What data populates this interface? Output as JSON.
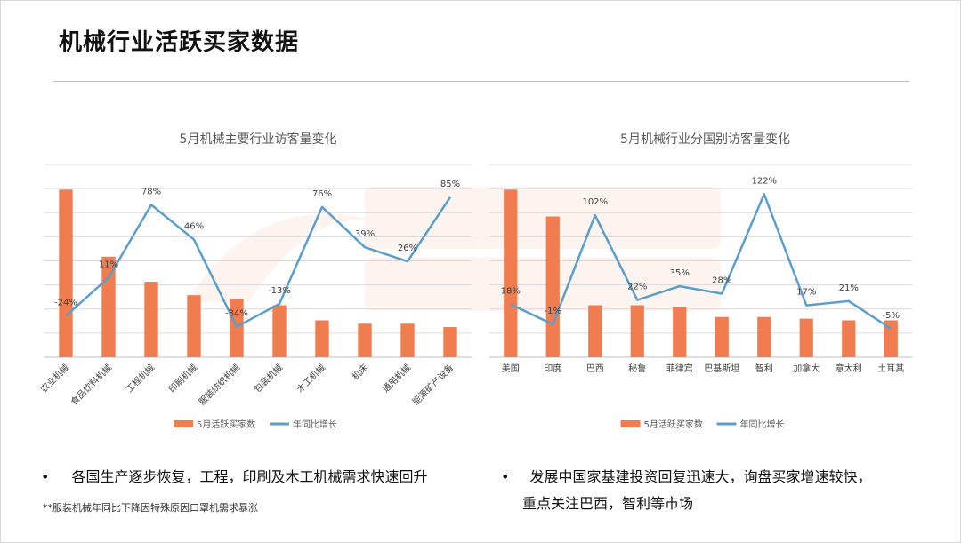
{
  "slide": {
    "title": "机械行业活跃买家数据",
    "bullet_left": "各国生产逐步恢复，工程，印刷及木工机械需求快速回升",
    "note_left": "**服装机械年同比下降因特殊原因口罩机需求暴涨",
    "bullet_right_line1": "发展中国家基建投资回复迅速大，询盘买家增速较快，",
    "bullet_right_line2": "重点关注巴西，智利等市场",
    "bullet_symbol": "•"
  },
  "colors": {
    "bar": "#f07c4f",
    "line": "#5b9ec9",
    "grid": "#d9d9d9",
    "axis": "#bfbfbf"
  },
  "chart_data": [
    {
      "type": "bar",
      "title": "5月机械主要行业访客量变化",
      "categories": [
        "农业机械",
        "食品饮料机械",
        "工程机械",
        "印刷机械",
        "服装纺织机械",
        "包装机械",
        "木工机械",
        "机床",
        "通用机械",
        "能源矿产设备"
      ],
      "series": [
        {
          "name": "5月活跃买家数",
          "type": "bar",
          "values": [
            100,
            60,
            45,
            37,
            35,
            31,
            22,
            20,
            20,
            18
          ]
        },
        {
          "name": "年同比增长",
          "type": "line",
          "values": [
            -24,
            11,
            78,
            46,
            -34,
            -13,
            76,
            39,
            26,
            85
          ],
          "labels": [
            "-24%",
            "11%",
            "78%",
            "46%",
            "-34%",
            "-13%",
            "76%",
            "39%",
            "26%",
            "85%"
          ]
        }
      ],
      "legend": "bottom",
      "grid": true
    },
    {
      "type": "bar",
      "title": "5月机械行业分国别访客量变化",
      "categories": [
        "美国",
        "印度",
        "巴西",
        "秘鲁",
        "菲律宾",
        "巴基斯坦",
        "智利",
        "加拿大",
        "意大利",
        "土耳其"
      ],
      "series": [
        {
          "name": "5月活跃买家数",
          "type": "bar",
          "values": [
            100,
            84,
            31,
            31,
            30,
            24,
            24,
            23,
            22,
            22
          ]
        },
        {
          "name": "年同比增长",
          "type": "line",
          "values": [
            18,
            -1,
            102,
            22,
            35,
            28,
            122,
            17,
            21,
            -5
          ],
          "labels": [
            "18%",
            "-1%",
            "102%",
            "22%",
            "35%",
            "28%",
            "122%",
            "17%",
            "21%",
            "-5%"
          ]
        }
      ],
      "legend": "bottom",
      "grid": true
    }
  ]
}
